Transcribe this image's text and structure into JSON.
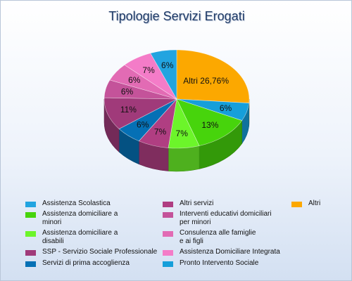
{
  "chart_data": {
    "type": "pie",
    "title": "Tipologie Servizi Erogati",
    "slices": [
      {
        "label": "Altri",
        "value": 26.76,
        "text": "Altri 26,76%",
        "color": "#fca800"
      },
      {
        "label": "Pronto Intervento Sociale",
        "value": 6,
        "text": "6%",
        "color": "#169fda"
      },
      {
        "label": "Assistenza domiciliare a\nminori",
        "value": 13,
        "text": "13%",
        "color": "#47d40c"
      },
      {
        "label": "Assistenza domiciliare a\ndisabili",
        "value": 7,
        "text": "7%",
        "color": "#6cf52a"
      },
      {
        "label": "Altri servizi",
        "value": 7,
        "text": "7%",
        "color": "#b03e82"
      },
      {
        "label": "Servizi di prima accoglienza",
        "value": 6,
        "text": "6%",
        "color": "#0570b5"
      },
      {
        "label": "SSP - Servizio Sociale Professionale",
        "value": 11,
        "text": "11%",
        "color": "#a03a7a"
      },
      {
        "label": "Interventi educativi domiciliari\nper minori",
        "value": 6,
        "text": "6%",
        "color": "#c4539a"
      },
      {
        "label": "Consulenza alle famiglie\ne ai figli",
        "value": 6,
        "text": "6%",
        "color": "#e26bb4"
      },
      {
        "label": "Assistenza Domiciliare Integrata",
        "value": 7,
        "text": "7%",
        "color": "#f47cc8"
      },
      {
        "label": "Assistenza Scolastica",
        "value": 6,
        "text": "6%",
        "color": "#22a4e0"
      }
    ],
    "legend": [
      {
        "label": "Assistenza Scolastica",
        "color": "#22a4e0"
      },
      {
        "label": "Altri servizi",
        "color": "#b03e82"
      },
      {
        "label": "Altri",
        "color": "#fca800"
      },
      {
        "label": "Assistenza domiciliare a\nminori",
        "color": "#47d40c"
      },
      {
        "label": "Interventi educativi domiciliari\nper minori",
        "color": "#c4539a"
      },
      {
        "label": "Assistenza domiciliare a\ndisabili",
        "color": "#6cf52a"
      },
      {
        "label": "Consulenza alle famiglie\ne ai figli",
        "color": "#e26bb4"
      },
      {
        "label": "SSP - Servizio Sociale Professionale",
        "color": "#a03a7a"
      },
      {
        "label": "Assistenza Domiciliare Integrata",
        "color": "#f47cc8"
      },
      {
        "label": "Servizi di prima accoglienza",
        "color": "#0570b5"
      },
      {
        "label": "Pronto Intervento Sociale",
        "color": "#169fda"
      }
    ],
    "legend_position": "bottom"
  }
}
